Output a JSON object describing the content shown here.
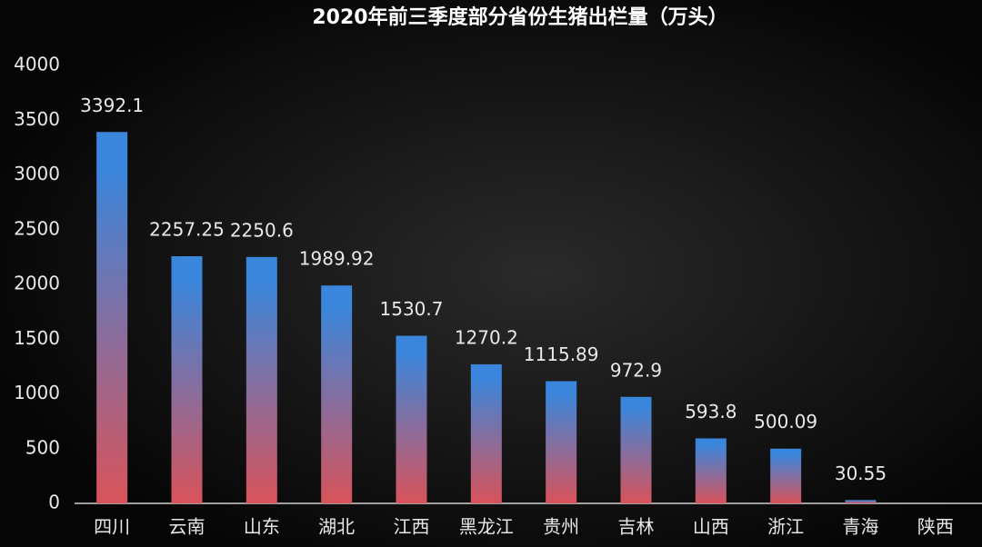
{
  "chart_data": {
    "type": "bar",
    "title": "2020年前三季度部分省份生猪出栏量（万头）",
    "categories": [
      "四川",
      "云南",
      "山东",
      "湖北",
      "江西",
      "黑龙江",
      "贵州",
      "吉林",
      "山西",
      "浙江",
      "青海",
      "陕西"
    ],
    "values": [
      3392.1,
      2257.25,
      2250.6,
      1989.92,
      1530.7,
      1270.2,
      1115.89,
      972.9,
      593.8,
      500.09,
      30.55,
      null
    ],
    "color": [
      "#3a86dc",
      "#d9535a"
    ],
    "ylim": [
      0,
      4000
    ],
    "yticks": [
      0,
      500,
      1000,
      1500,
      2000,
      2500,
      3000,
      3500,
      4000
    ],
    "grid": false
  }
}
